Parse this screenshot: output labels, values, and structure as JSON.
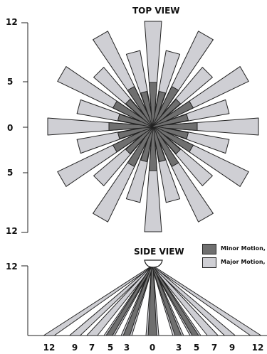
{
  "top_view": {
    "title": "TOP VIEW",
    "y_labels": [
      "12",
      "5",
      "0",
      "5",
      "12"
    ]
  },
  "side_view": {
    "title": "SIDE VIEW",
    "y_label": "12",
    "x_labels": [
      "12",
      "9",
      "7",
      "5",
      "3",
      "0",
      "3",
      "5",
      "7",
      "9",
      "12"
    ]
  },
  "legend": [
    {
      "label": "Minor Motion, I",
      "color": "#6f6f6f"
    },
    {
      "label": "Major Motion, I",
      "color": "#cfcfd4"
    }
  ],
  "colors": {
    "minor": "#6f6f6f",
    "major": "#cfcfd4",
    "outline": "#222222"
  }
}
